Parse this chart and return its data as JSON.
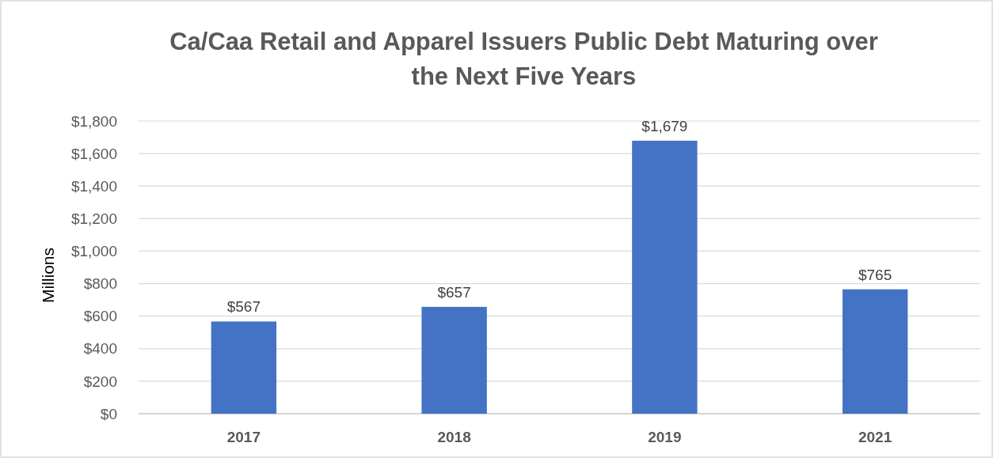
{
  "chart_data": {
    "type": "bar",
    "title": "Ca/Caa Retail and Apparel Issuers Public Debt Maturing over the Next Five Years",
    "ylabel": "Millions",
    "categories": [
      "2017",
      "2018",
      "2019",
      "2021"
    ],
    "values": [
      567,
      657,
      1679,
      765
    ],
    "value_labels": [
      "$567",
      "$657",
      "$1,679",
      "$765"
    ],
    "color": "#4472c4",
    "ylim": [
      0,
      1800
    ],
    "yticks": [
      {
        "value": 0,
        "label": "$0"
      },
      {
        "value": 200,
        "label": "$200"
      },
      {
        "value": 400,
        "label": "$400"
      },
      {
        "value": 600,
        "label": "$600"
      },
      {
        "value": 800,
        "label": "$800"
      },
      {
        "value": 1000,
        "label": "$1,000"
      },
      {
        "value": 1200,
        "label": "$1,200"
      },
      {
        "value": 1400,
        "label": "$1,400"
      },
      {
        "value": 1600,
        "label": "$1,600"
      },
      {
        "value": 1800,
        "label": "$1,800"
      }
    ],
    "grid": "y"
  }
}
